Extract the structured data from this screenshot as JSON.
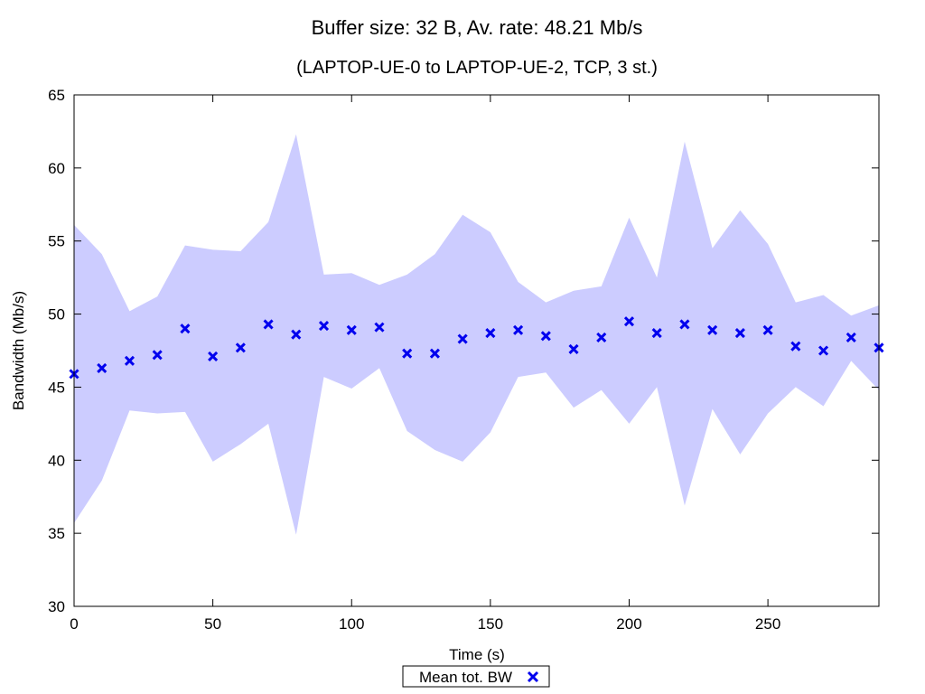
{
  "chart_data": {
    "type": "scatter",
    "title": "Buffer size: 32 B, Av. rate: 48.21 Mb/s",
    "subtitle": "(LAPTOP-UE-0 to LAPTOP-UE-2, TCP, 3 st.)",
    "xlabel": "Time (s)",
    "ylabel": "Bandwidth (Mb/s)",
    "xlim": [
      0,
      290
    ],
    "ylim": [
      30,
      65
    ],
    "xticks": [
      0,
      50,
      100,
      150,
      200,
      250
    ],
    "yticks": [
      30,
      35,
      40,
      45,
      50,
      55,
      60,
      65
    ],
    "grid": false,
    "legend": "bottom-center",
    "colors": {
      "band": "#ccccff",
      "marker": "#0000ee"
    },
    "x": [
      0,
      10,
      20,
      30,
      40,
      50,
      60,
      70,
      80,
      90,
      100,
      110,
      120,
      130,
      140,
      150,
      160,
      170,
      180,
      190,
      200,
      210,
      220,
      230,
      240,
      250,
      260,
      270,
      280,
      290
    ],
    "series": [
      {
        "name": "Mean tot. BW",
        "values": [
          45.9,
          46.3,
          46.8,
          47.2,
          49.0,
          47.1,
          47.7,
          49.3,
          48.6,
          49.2,
          48.9,
          49.1,
          47.3,
          47.3,
          48.3,
          48.7,
          48.9,
          48.5,
          47.6,
          48.4,
          49.5,
          48.7,
          49.3,
          48.9,
          48.7,
          48.9,
          47.8,
          47.5,
          48.4,
          47.7
        ]
      }
    ],
    "band": {
      "lower": [
        35.7,
        38.6,
        43.4,
        43.2,
        43.3,
        39.9,
        41.1,
        42.5,
        34.9,
        45.7,
        44.9,
        46.3,
        42.0,
        40.7,
        39.9,
        41.9,
        45.7,
        46.0,
        43.6,
        44.8,
        42.5,
        45.0,
        36.9,
        43.5,
        40.4,
        43.2,
        45.0,
        43.7,
        46.8,
        44.8
      ],
      "upper": [
        56.1,
        54.1,
        50.2,
        51.2,
        54.7,
        54.4,
        54.3,
        56.3,
        62.3,
        52.7,
        52.8,
        52.0,
        52.7,
        54.1,
        56.8,
        55.6,
        52.2,
        50.8,
        51.6,
        51.9,
        56.6,
        52.5,
        61.8,
        54.5,
        57.1,
        54.8,
        50.8,
        51.3,
        49.9,
        50.6
      ]
    }
  }
}
